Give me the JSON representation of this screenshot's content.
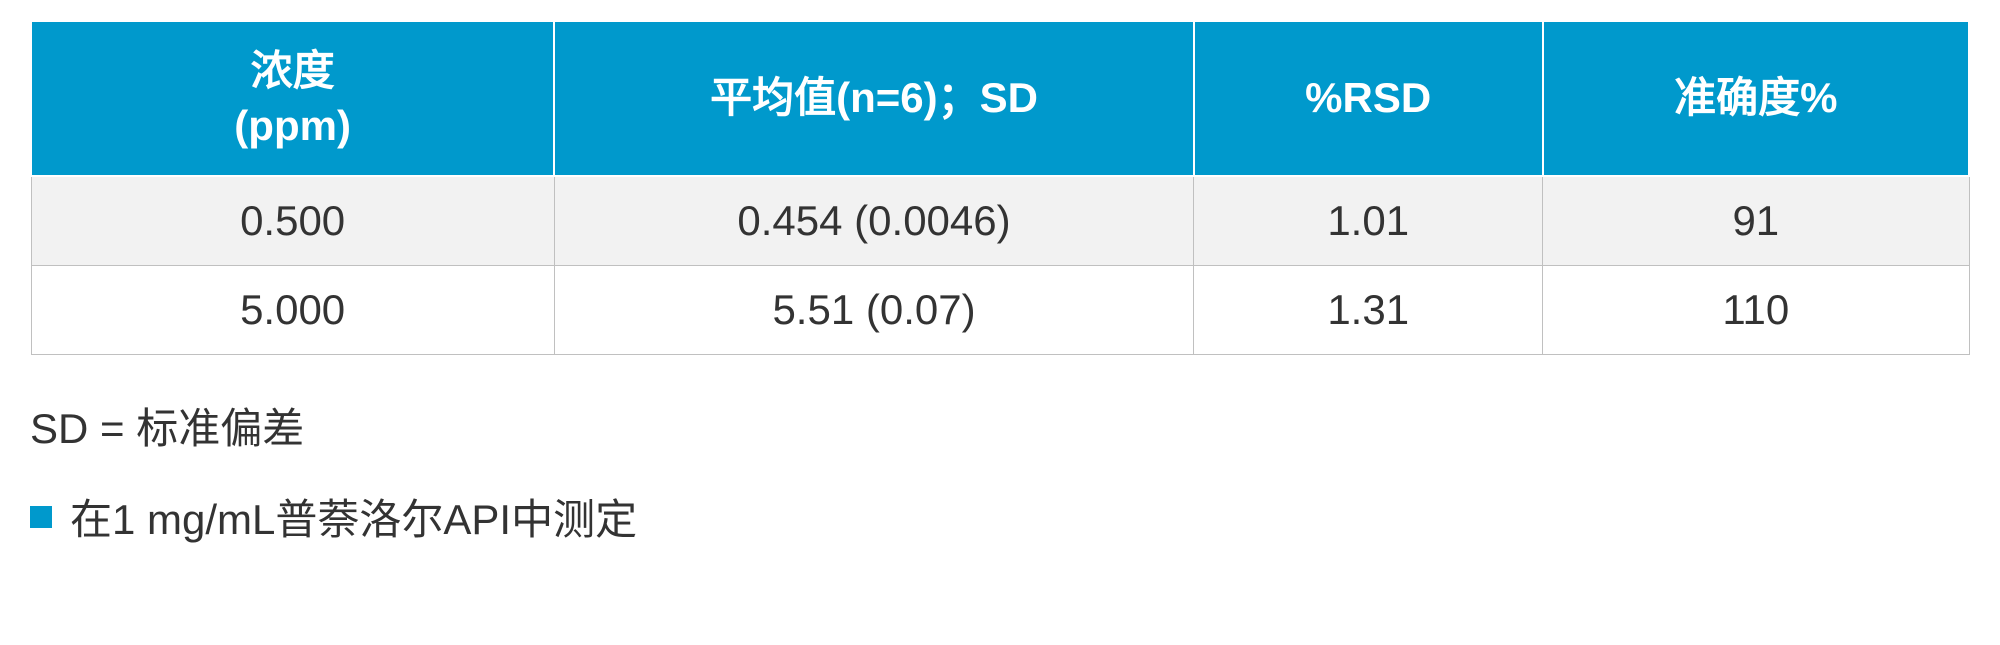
{
  "table": {
    "header_bg": "#0099cc",
    "header_fg": "#ffffff",
    "row_odd_bg": "#f2f2f2",
    "row_even_bg": "#ffffff",
    "border_color": "#c0c0c0",
    "font_size": 42,
    "columns": [
      {
        "label_line1": "浓度",
        "label_line2": "(ppm)",
        "width_pct": 27
      },
      {
        "label_line1": "平均值(n=6)；SD",
        "label_line2": "",
        "width_pct": 33
      },
      {
        "label_line1": "%RSD",
        "label_line2": "",
        "width_pct": 18
      },
      {
        "label_line1": "准确度%",
        "label_line2": "",
        "width_pct": 22
      }
    ],
    "rows": [
      {
        "c0": "0.500",
        "c1": "0.454 (0.0046)",
        "c2": "1.01",
        "c3": "91"
      },
      {
        "c0": "5.000",
        "c1": "5.51 (0.07)",
        "c2": "1.31",
        "c3": "110"
      }
    ]
  },
  "footnote": "SD = 标准偏差",
  "bullet_note": "在1 mg/mL普萘洛尔API中测定",
  "bullet_color": "#0099cc"
}
